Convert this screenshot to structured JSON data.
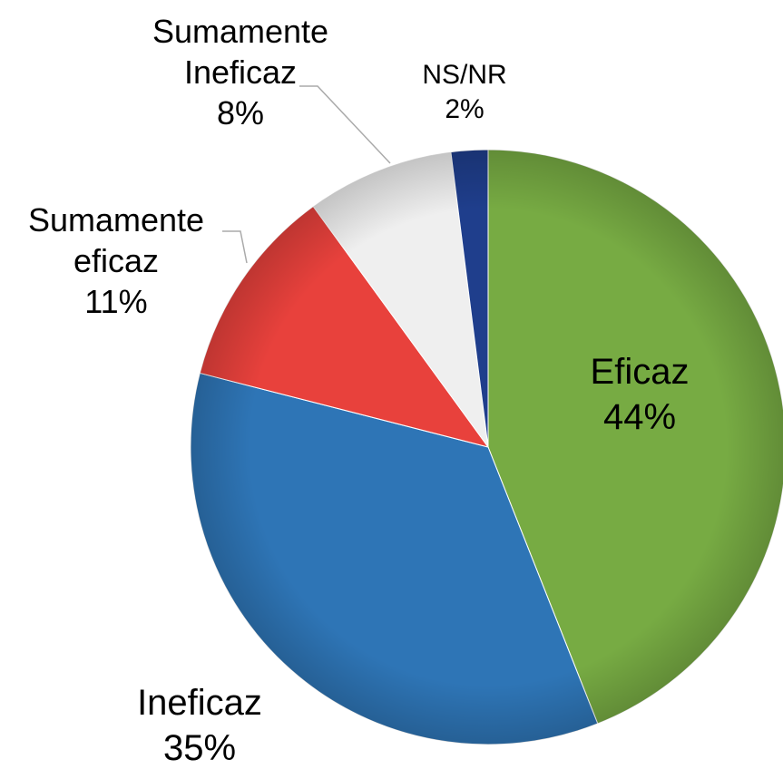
{
  "chart_data": {
    "type": "pie",
    "categories": [
      "Eficaz",
      "Ineficaz",
      "Sumamente eficaz",
      "Sumamente Ineficaz",
      "NS/NR"
    ],
    "values": [
      44,
      35,
      11,
      8,
      2
    ],
    "value_labels": [
      "44%",
      "35%",
      "11%",
      "8%",
      "2%"
    ],
    "colors": [
      "#77ab43",
      "#2e75b6",
      "#e8413c",
      "#efefef",
      "#1f3e8c"
    ]
  }
}
